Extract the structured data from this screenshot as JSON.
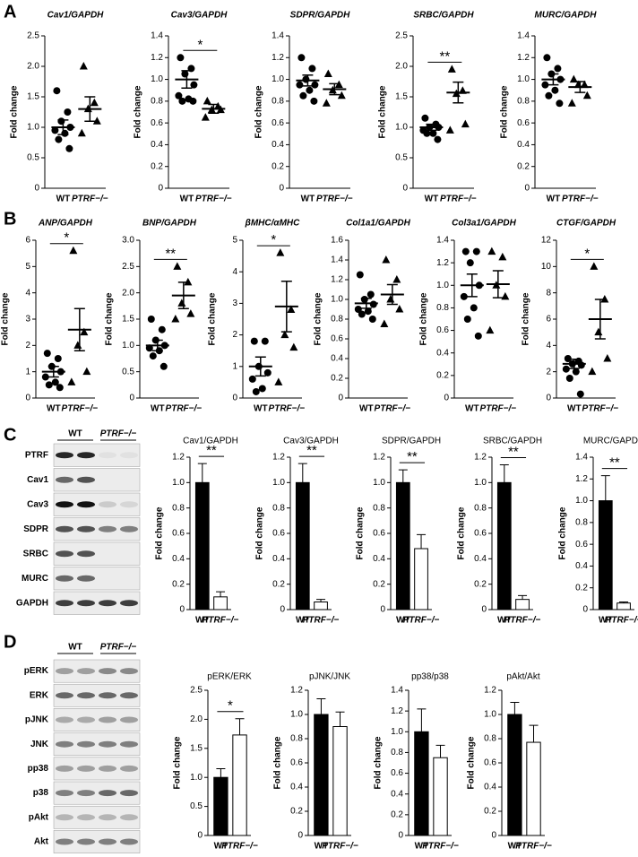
{
  "panels": [
    "A",
    "B",
    "C",
    "D"
  ],
  "blots": [
    {
      "groups": [
        "WT",
        "PTRF−/−"
      ],
      "rows": [
        "PTRF",
        "Cav1",
        "Cav3",
        "SDPR",
        "SRBC",
        "MURC",
        "GAPDH"
      ]
    },
    {
      "groups": [
        "WT",
        "PTRF−/−"
      ],
      "rows": [
        "pERK",
        "ERK",
        "pJNK",
        "JNK",
        "pp38",
        "p38",
        "pAkt",
        "Akt"
      ]
    }
  ],
  "chart_data": [
    {
      "type": "dot",
      "title": "Cav1/GAPDH",
      "ylabel": "Fold change",
      "categories": [
        "WT",
        "PTRF−/−"
      ],
      "points": [
        [
          1.6,
          1.25,
          1.1,
          1.0,
          0.95,
          0.9,
          0.8,
          0.65
        ],
        [
          2.0,
          1.4,
          1.3,
          1.1,
          0.9
        ]
      ],
      "means": [
        1.0,
        1.3
      ],
      "errors": [
        0.12,
        0.2
      ],
      "ylim": [
        0,
        2.5
      ],
      "yticks": [
        0,
        0.5,
        {
          "value": 1,
          "label": "1.0"
        },
        1.5,
        {
          "value": 2,
          "label": "2.0"
        },
        2.5
      ]
    },
    {
      "type": "dot",
      "title": "Cav3/GAPDH",
      "ylabel": "Fold change",
      "categories": [
        "WT",
        "PTRF−/−"
      ],
      "points": [
        [
          1.2,
          1.1,
          1.05,
          0.95,
          0.85,
          0.82,
          0.8,
          0.8
        ],
        [
          0.8,
          0.75,
          0.72,
          0.72,
          0.65
        ]
      ],
      "means": [
        1.0,
        0.73
      ],
      "errors": [
        0.08,
        0.04
      ],
      "ylim": [
        0,
        1.4
      ],
      "yticks": [
        0,
        0.2,
        0.4,
        0.6,
        0.8,
        {
          "value": 1,
          "label": "1.0"
        },
        1.2,
        1.4
      ],
      "annotation": "*"
    },
    {
      "type": "dot",
      "title": "SDPR/GAPDH",
      "ylabel": "Fold change",
      "categories": [
        "WT",
        "PTRF−/−"
      ],
      "points": [
        [
          1.2,
          1.1,
          1.0,
          0.95,
          0.95,
          0.9,
          0.85,
          0.8
        ],
        [
          1.05,
          0.95,
          0.9,
          0.85,
          0.78
        ]
      ],
      "means": [
        0.99,
        0.91
      ],
      "errors": [
        0.05,
        0.05
      ],
      "ylim": [
        0,
        1.4
      ],
      "yticks": [
        0,
        0.2,
        0.4,
        0.6,
        0.8,
        {
          "value": 1,
          "label": "1.0"
        },
        1.2,
        1.4
      ]
    },
    {
      "type": "dot",
      "title": "SRBC/GAPDH",
      "ylabel": "Fold change",
      "categories": [
        "WT",
        "PTRF−/−"
      ],
      "points": [
        [
          1.15,
          1.05,
          1.0,
          1.0,
          0.95,
          0.9,
          0.9,
          0.8
        ],
        [
          1.95,
          1.6,
          1.55,
          1.05,
          0.95
        ]
      ],
      "means": [
        1.0,
        1.57
      ],
      "errors": [
        0.05,
        0.17
      ],
      "ylim": [
        0,
        2.5
      ],
      "yticks": [
        0,
        0.5,
        {
          "value": 1,
          "label": "1.0"
        },
        1.5,
        {
          "value": 2,
          "label": "2.0"
        },
        2.5
      ],
      "annotation": "**"
    },
    {
      "type": "dot",
      "title": "MURC/GAPDH",
      "ylabel": "Fold change",
      "categories": [
        "WT",
        "PTRF−/−"
      ],
      "points": [
        [
          1.2,
          1.1,
          1.05,
          1.0,
          0.95,
          0.9,
          0.85,
          0.78
        ],
        [
          1.0,
          0.95,
          0.95,
          0.85,
          0.78
        ]
      ],
      "means": [
        1.0,
        0.93
      ],
      "errors": [
        0.05,
        0.05
      ],
      "ylim": [
        0,
        1.4
      ],
      "yticks": [
        0,
        0.2,
        0.4,
        0.6,
        0.8,
        {
          "value": 1,
          "label": "1.0"
        },
        1.2,
        1.4
      ]
    },
    {
      "type": "dot",
      "title": "ANP/GAPDH",
      "ylabel": "Fold change",
      "categories": [
        "WT",
        "PTRF−/−"
      ],
      "points": [
        [
          1.7,
          1.5,
          1.2,
          1.0,
          0.8,
          0.6,
          0.5,
          0.4
        ],
        [
          5.6,
          2.5,
          2.0,
          1.0,
          0.6
        ]
      ],
      "means": [
        1.0,
        2.6
      ],
      "errors": [
        0.2,
        0.8
      ],
      "ylim": [
        0,
        6
      ],
      "yticks": [
        0,
        1,
        2,
        3,
        4,
        5,
        6
      ],
      "annotation": "*"
    },
    {
      "type": "dot",
      "title": "BNP/GAPDH",
      "ylabel": "Fold change",
      "categories": [
        "WT",
        "PTRF−/−"
      ],
      "points": [
        [
          1.5,
          1.3,
          1.1,
          1.0,
          0.95,
          0.9,
          0.8,
          0.6
        ],
        [
          2.5,
          2.2,
          1.8,
          1.6,
          1.5
        ]
      ],
      "means": [
        1.0,
        1.95
      ],
      "errors": [
        0.1,
        0.25
      ],
      "ylim": [
        0,
        3
      ],
      "yticks": [
        0,
        0.5,
        {
          "value": 1,
          "label": "1.0"
        },
        1.5,
        {
          "value": 2,
          "label": "2.0"
        },
        2.5,
        {
          "value": 3,
          "label": "3.0"
        }
      ],
      "annotation": "**"
    },
    {
      "type": "dot",
      "title": "βMHC/αMHC",
      "ylabel": "Fold change",
      "categories": [
        "WT",
        "PTRF−/−"
      ],
      "points": [
        [
          1.8,
          1.8,
          1.0,
          0.8,
          0.6,
          0.3,
          0.2
        ],
        [
          4.6,
          2.8,
          2.0,
          1.6,
          0.5
        ]
      ],
      "means": [
        1.0,
        2.9
      ],
      "errors": [
        0.3,
        0.8
      ],
      "ylim": [
        0,
        5
      ],
      "yticks": [
        0,
        1,
        2,
        3,
        4,
        5
      ],
      "annotation": "*"
    },
    {
      "type": "dot",
      "title": "Col1a1/GAPDH",
      "ylabel": "Fold change",
      "categories": [
        "WT",
        "PTRF−/−"
      ],
      "points": [
        [
          1.25,
          1.05,
          1.0,
          0.95,
          0.9,
          0.88,
          0.85,
          0.8
        ],
        [
          1.4,
          1.2,
          1.0,
          0.9,
          0.75
        ]
      ],
      "means": [
        0.96,
        1.05
      ],
      "errors": [
        0.05,
        0.1
      ],
      "ylim": [
        0,
        1.6
      ],
      "yticks": [
        0,
        0.2,
        0.4,
        0.6,
        0.8,
        {
          "value": 1,
          "label": "1.0"
        },
        1.2,
        1.4,
        1.6
      ]
    },
    {
      "type": "dot",
      "title": "Col3a1/GAPDH",
      "ylabel": "Fold change",
      "categories": [
        "WT",
        "PTRF−/−"
      ],
      "points": [
        [
          1.3,
          1.3,
          1.2,
          1.0,
          0.9,
          0.8,
          0.7,
          0.55
        ],
        [
          1.3,
          1.25,
          1.0,
          0.9,
          0.6
        ]
      ],
      "means": [
        1.0,
        1.01
      ],
      "errors": [
        0.1,
        0.12
      ],
      "ylim": [
        0,
        1.4
      ],
      "yticks": [
        0,
        0.2,
        0.4,
        0.6,
        0.8,
        {
          "value": 1,
          "label": "1.0"
        },
        1.2,
        1.4
      ]
    },
    {
      "type": "dot",
      "title": "CTGF/GAPDH",
      "ylabel": "Fold change",
      "categories": [
        "WT",
        "PTRF−/−"
      ],
      "points": [
        [
          3.0,
          2.8,
          2.6,
          2.5,
          2.2,
          2.0,
          1.5,
          0.3
        ],
        [
          10,
          7.5,
          5.0,
          3.0,
          2.0
        ]
      ],
      "means": [
        2.6,
        6.0
      ],
      "errors": [
        0.35,
        1.5
      ],
      "ylim": [
        0,
        12
      ],
      "yticks": [
        0,
        2,
        4,
        6,
        8,
        10,
        12
      ],
      "annotation": "*"
    },
    {
      "type": "bar",
      "title": "Cav1/GAPDH",
      "ylabel": "Fold change",
      "categories": [
        "WT",
        "PTRF−/−"
      ],
      "colors": [
        "#000000",
        "#ffffff"
      ],
      "values": [
        1.0,
        0.1
      ],
      "errors": [
        0.15,
        0.04
      ],
      "ylim": [
        0,
        1.2
      ],
      "yticks": [
        0,
        0.2,
        0.4,
        0.6,
        0.8,
        {
          "value": 1,
          "label": "1.0"
        },
        1.2
      ],
      "annotation": "**"
    },
    {
      "type": "bar",
      "title": "Cav3/GAPDH",
      "ylabel": "Fold change",
      "categories": [
        "WT",
        "PTRF−/−"
      ],
      "colors": [
        "#000000",
        "#ffffff"
      ],
      "values": [
        1.0,
        0.06
      ],
      "errors": [
        0.15,
        0.02
      ],
      "ylim": [
        0,
        1.2
      ],
      "yticks": [
        0,
        0.2,
        0.4,
        0.6,
        0.8,
        {
          "value": 1,
          "label": "1.0"
        },
        1.2
      ],
      "annotation": "**"
    },
    {
      "type": "bar",
      "title": "SDPR/GAPDH",
      "ylabel": "Fold change",
      "categories": [
        "WT",
        "PTRF−/−"
      ],
      "colors": [
        "#000000",
        "#ffffff"
      ],
      "values": [
        1.0,
        0.48
      ],
      "errors": [
        0.1,
        0.11
      ],
      "ylim": [
        0,
        1.2
      ],
      "yticks": [
        0,
        0.2,
        0.4,
        0.6,
        0.8,
        {
          "value": 1,
          "label": "1.0"
        },
        1.2
      ],
      "annotation": "**"
    },
    {
      "type": "bar",
      "title": "SRBC/GAPDH",
      "ylabel": "Fold change",
      "categories": [
        "WT",
        "PTRF−/−"
      ],
      "colors": [
        "#000000",
        "#ffffff"
      ],
      "values": [
        1.0,
        0.08
      ],
      "errors": [
        0.14,
        0.03
      ],
      "ylim": [
        0,
        1.2
      ],
      "yticks": [
        0,
        0.2,
        0.4,
        0.6,
        0.8,
        {
          "value": 1,
          "label": "1.0"
        },
        1.2
      ],
      "annotation": "**"
    },
    {
      "type": "bar",
      "title": "MURC/GAPDH",
      "ylabel": "Fold change",
      "categories": [
        "WT",
        "PTRF−/−"
      ],
      "colors": [
        "#000000",
        "#ffffff"
      ],
      "values": [
        1.0,
        0.06
      ],
      "errors": [
        0.23,
        0.01
      ],
      "ylim": [
        0,
        1.4
      ],
      "yticks": [
        0,
        0.2,
        0.4,
        0.6,
        0.8,
        {
          "value": 1,
          "label": "1.0"
        },
        1.2,
        1.4
      ],
      "annotation": "**"
    },
    {
      "type": "bar",
      "title": "pERK/ERK",
      "ylabel": "Fold change",
      "categories": [
        "WT",
        "PTRF−/−"
      ],
      "colors": [
        "#000000",
        "#ffffff"
      ],
      "values": [
        1.0,
        1.73
      ],
      "errors": [
        0.15,
        0.28
      ],
      "ylim": [
        0,
        2.5
      ],
      "yticks": [
        0,
        0.5,
        {
          "value": 1,
          "label": "1.0"
        },
        1.5,
        {
          "value": 2,
          "label": "2.0"
        },
        2.5
      ],
      "annotation": "*"
    },
    {
      "type": "bar",
      "title": "pJNK/JNK",
      "ylabel": "Fold change",
      "categories": [
        "WT",
        "PTRF−/−"
      ],
      "colors": [
        "#000000",
        "#ffffff"
      ],
      "values": [
        1.0,
        0.9
      ],
      "errors": [
        0.13,
        0.12
      ],
      "ylim": [
        0,
        1.2
      ],
      "yticks": [
        0,
        0.2,
        0.4,
        0.6,
        0.8,
        {
          "value": 1,
          "label": "1.0"
        },
        1.2
      ]
    },
    {
      "type": "bar",
      "title": "pp38/p38",
      "ylabel": "Fold change",
      "categories": [
        "WT",
        "PTRF−/−"
      ],
      "colors": [
        "#000000",
        "#ffffff"
      ],
      "values": [
        1.0,
        0.75
      ],
      "errors": [
        0.22,
        0.12
      ],
      "ylim": [
        0,
        1.4
      ],
      "yticks": [
        0,
        0.2,
        0.4,
        0.6,
        0.8,
        {
          "value": 1,
          "label": "1.0"
        },
        1.2,
        1.4
      ]
    },
    {
      "type": "bar",
      "title": "pAkt/Akt",
      "ylabel": "Fold change",
      "categories": [
        "WT",
        "PTRF−/−"
      ],
      "colors": [
        "#000000",
        "#ffffff"
      ],
      "values": [
        1.0,
        0.77
      ],
      "errors": [
        0.1,
        0.14
      ],
      "ylim": [
        0,
        1.2
      ],
      "yticks": [
        0,
        0.2,
        0.4,
        0.6,
        0.8,
        {
          "value": 1,
          "label": "1.0"
        },
        1.2
      ]
    }
  ]
}
